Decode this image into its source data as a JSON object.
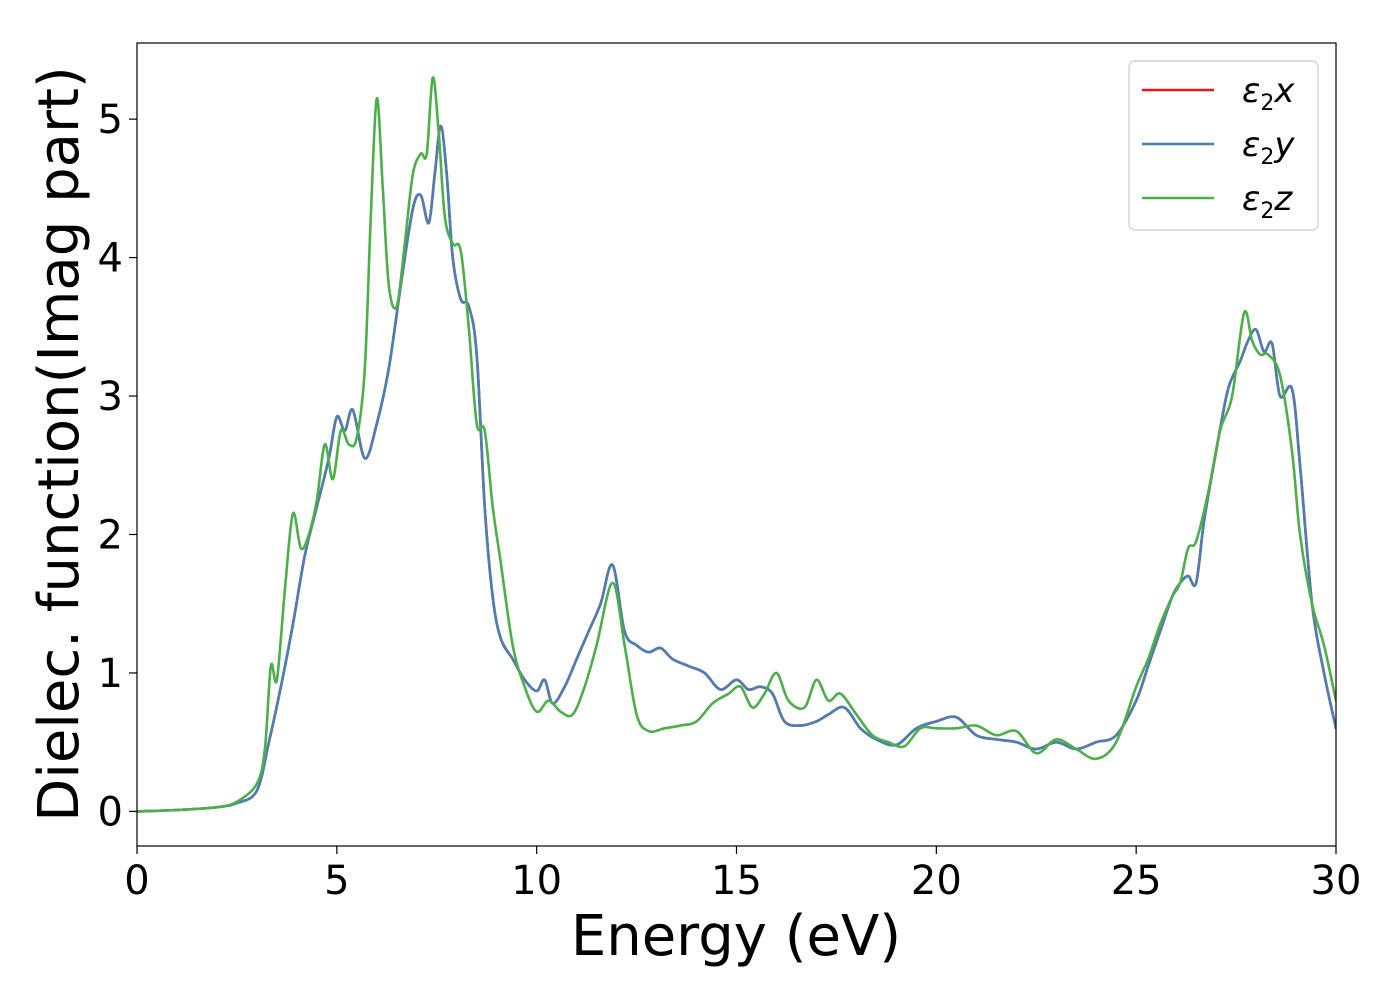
{
  "chart_data": {
    "type": "line",
    "title": "",
    "xlabel": "Energy (eV)",
    "ylabel": "Dielec. function(Imag part)",
    "xlim": [
      0,
      30
    ],
    "ylim": [
      -0.25,
      5.55
    ],
    "xticks": [
      0,
      5,
      10,
      15,
      20,
      25,
      30
    ],
    "yticks": [
      0,
      1,
      2,
      3,
      4,
      5
    ],
    "xtick_labels": [
      "0",
      "5",
      "10",
      "15",
      "20",
      "25",
      "30"
    ],
    "ytick_labels": [
      "0",
      "1",
      "2",
      "3",
      "4",
      "5"
    ],
    "grid": false,
    "legend_position": "top-right",
    "series": [
      {
        "name": "ε₂x",
        "label_base": "ε",
        "label_sub": "2",
        "label_var": "x",
        "color": "#e41a1c",
        "x": [
          0,
          1,
          2,
          2.5,
          3,
          3.3,
          3.6,
          3.9,
          4.2,
          4.5,
          4.8,
          5.0,
          5.2,
          5.4,
          5.7,
          6.0,
          6.3,
          6.6,
          6.9,
          7.1,
          7.3,
          7.45,
          7.6,
          7.75,
          7.9,
          8.1,
          8.3,
          8.5,
          8.7,
          8.9,
          9.1,
          9.4,
          9.7,
          10.0,
          10.2,
          10.4,
          10.7,
          11.0,
          11.3,
          11.6,
          11.9,
          12.2,
          12.5,
          12.8,
          13.1,
          13.4,
          13.8,
          14.2,
          14.6,
          15.0,
          15.3,
          15.6,
          15.9,
          16.2,
          16.6,
          17.0,
          17.3,
          17.7,
          18.1,
          18.5,
          19.0,
          19.5,
          20.0,
          20.5,
          21.0,
          21.5,
          22.0,
          22.5,
          23.0,
          23.5,
          24.0,
          24.5,
          25.0,
          25.3,
          25.6,
          25.9,
          26.1,
          26.3,
          26.5,
          26.7,
          27.0,
          27.3,
          27.6,
          27.8,
          28.0,
          28.2,
          28.4,
          28.6,
          28.9,
          29.1,
          29.4,
          29.7,
          30.0
        ],
        "values": [
          0,
          0.01,
          0.03,
          0.06,
          0.15,
          0.5,
          0.9,
          1.35,
          1.85,
          2.2,
          2.55,
          2.85,
          2.75,
          2.9,
          2.55,
          2.8,
          3.2,
          3.8,
          4.35,
          4.45,
          4.25,
          4.6,
          4.95,
          4.6,
          4.0,
          3.7,
          3.65,
          3.3,
          2.2,
          1.55,
          1.25,
          1.1,
          0.95,
          0.87,
          0.95,
          0.78,
          0.9,
          1.1,
          1.3,
          1.5,
          1.78,
          1.3,
          1.2,
          1.15,
          1.18,
          1.1,
          1.05,
          1.0,
          0.88,
          0.95,
          0.88,
          0.9,
          0.85,
          0.65,
          0.62,
          0.65,
          0.7,
          0.75,
          0.6,
          0.52,
          0.48,
          0.6,
          0.65,
          0.68,
          0.55,
          0.52,
          0.5,
          0.45,
          0.5,
          0.45,
          0.5,
          0.55,
          0.8,
          1.05,
          1.3,
          1.55,
          1.65,
          1.7,
          1.65,
          2.1,
          2.6,
          3.05,
          3.25,
          3.4,
          3.48,
          3.32,
          3.38,
          3.0,
          3.05,
          2.5,
          1.5,
          1.0,
          0.6
        ]
      },
      {
        "name": "ε₂y",
        "label_base": "ε",
        "label_sub": "2",
        "label_var": "y",
        "color": "#4a7fb5",
        "x": [
          0,
          1,
          2,
          2.5,
          3,
          3.3,
          3.6,
          3.9,
          4.2,
          4.5,
          4.8,
          5.0,
          5.2,
          5.4,
          5.7,
          6.0,
          6.3,
          6.6,
          6.9,
          7.1,
          7.3,
          7.45,
          7.6,
          7.75,
          7.9,
          8.1,
          8.3,
          8.5,
          8.7,
          8.9,
          9.1,
          9.4,
          9.7,
          10.0,
          10.2,
          10.4,
          10.7,
          11.0,
          11.3,
          11.6,
          11.9,
          12.2,
          12.5,
          12.8,
          13.1,
          13.4,
          13.8,
          14.2,
          14.6,
          15.0,
          15.3,
          15.6,
          15.9,
          16.2,
          16.6,
          17.0,
          17.3,
          17.7,
          18.1,
          18.5,
          19.0,
          19.5,
          20.0,
          20.5,
          21.0,
          21.5,
          22.0,
          22.5,
          23.0,
          23.5,
          24.0,
          24.5,
          25.0,
          25.3,
          25.6,
          25.9,
          26.1,
          26.3,
          26.5,
          26.7,
          27.0,
          27.3,
          27.6,
          27.8,
          28.0,
          28.2,
          28.4,
          28.6,
          28.9,
          29.1,
          29.4,
          29.7,
          30.0
        ],
        "values": [
          0,
          0.01,
          0.03,
          0.06,
          0.15,
          0.5,
          0.9,
          1.35,
          1.85,
          2.2,
          2.55,
          2.85,
          2.75,
          2.9,
          2.55,
          2.8,
          3.2,
          3.8,
          4.35,
          4.45,
          4.25,
          4.6,
          4.95,
          4.6,
          4.0,
          3.7,
          3.65,
          3.3,
          2.2,
          1.55,
          1.25,
          1.1,
          0.95,
          0.87,
          0.95,
          0.78,
          0.9,
          1.1,
          1.3,
          1.5,
          1.78,
          1.3,
          1.2,
          1.15,
          1.18,
          1.1,
          1.05,
          1.0,
          0.88,
          0.95,
          0.88,
          0.9,
          0.85,
          0.65,
          0.62,
          0.65,
          0.7,
          0.75,
          0.6,
          0.52,
          0.48,
          0.6,
          0.65,
          0.68,
          0.55,
          0.52,
          0.5,
          0.45,
          0.5,
          0.45,
          0.5,
          0.55,
          0.8,
          1.05,
          1.3,
          1.55,
          1.65,
          1.7,
          1.65,
          2.1,
          2.6,
          3.05,
          3.25,
          3.4,
          3.48,
          3.32,
          3.38,
          3.0,
          3.05,
          2.5,
          1.5,
          1.0,
          0.6
        ]
      },
      {
        "name": "ε₂z",
        "label_base": "ε",
        "label_sub": "2",
        "label_var": "z",
        "color": "#4daf4a",
        "x": [
          0,
          1,
          2,
          2.5,
          3,
          3.2,
          3.35,
          3.5,
          3.7,
          3.9,
          4.1,
          4.3,
          4.5,
          4.7,
          4.9,
          5.1,
          5.3,
          5.5,
          5.7,
          5.85,
          6.0,
          6.15,
          6.3,
          6.5,
          6.7,
          6.9,
          7.1,
          7.25,
          7.4,
          7.55,
          7.7,
          7.9,
          8.1,
          8.3,
          8.5,
          8.7,
          8.9,
          9.1,
          9.4,
          9.7,
          10.0,
          10.3,
          10.6,
          10.9,
          11.2,
          11.5,
          11.9,
          12.2,
          12.5,
          12.8,
          13.2,
          13.6,
          14.0,
          14.4,
          14.8,
          15.1,
          15.4,
          15.7,
          16.0,
          16.3,
          16.7,
          17.0,
          17.3,
          17.6,
          18.0,
          18.4,
          18.8,
          19.2,
          19.6,
          20.0,
          20.5,
          21.0,
          21.5,
          22.0,
          22.5,
          23.0,
          23.5,
          24.0,
          24.5,
          25.0,
          25.3,
          25.6,
          25.9,
          26.1,
          26.3,
          26.5,
          26.8,
          27.1,
          27.4,
          27.7,
          27.9,
          28.1,
          28.3,
          28.6,
          28.9,
          29.1,
          29.4,
          29.7,
          30.0
        ],
        "values": [
          0,
          0.01,
          0.03,
          0.07,
          0.2,
          0.45,
          1.05,
          0.95,
          1.6,
          2.15,
          1.9,
          2.0,
          2.25,
          2.65,
          2.4,
          2.75,
          2.65,
          2.7,
          3.2,
          4.3,
          5.15,
          4.5,
          3.8,
          3.65,
          4.1,
          4.6,
          4.75,
          4.75,
          5.3,
          4.9,
          4.3,
          4.1,
          4.05,
          3.5,
          2.8,
          2.75,
          2.2,
          1.8,
          1.2,
          0.9,
          0.72,
          0.8,
          0.72,
          0.7,
          0.9,
          1.2,
          1.65,
          1.2,
          0.7,
          0.58,
          0.6,
          0.62,
          0.65,
          0.78,
          0.85,
          0.9,
          0.75,
          0.85,
          1.0,
          0.8,
          0.75,
          0.95,
          0.8,
          0.85,
          0.7,
          0.55,
          0.5,
          0.47,
          0.6,
          0.6,
          0.6,
          0.62,
          0.55,
          0.58,
          0.42,
          0.52,
          0.45,
          0.38,
          0.5,
          0.9,
          1.1,
          1.35,
          1.55,
          1.65,
          1.9,
          1.95,
          2.3,
          2.75,
          3.0,
          3.6,
          3.4,
          3.3,
          3.3,
          3.15,
          2.6,
          2.0,
          1.5,
          1.2,
          0.8
        ]
      }
    ]
  }
}
